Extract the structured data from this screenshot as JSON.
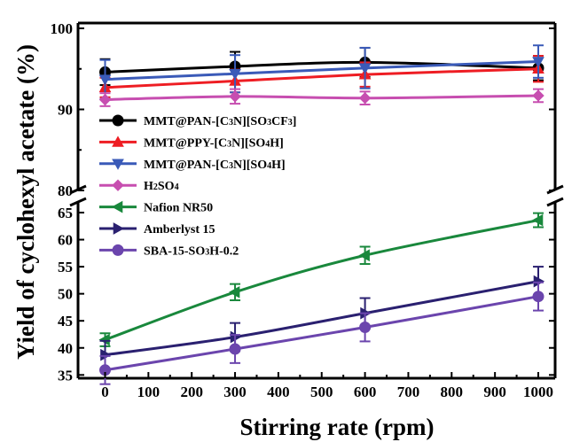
{
  "chart_data": {
    "type": "line",
    "xlabel": "Stirring rate (rpm)",
    "ylabel": "Yield of cyclohexyl acetate (%)",
    "xlim": [
      -30,
      1050
    ],
    "x_ticks": [
      "0",
      "100",
      "200",
      "300",
      "400",
      "500",
      "600",
      "700",
      "800",
      "900",
      "1000"
    ],
    "axis_break": "between 65 and 80",
    "upper_ylim": [
      80,
      100
    ],
    "upper_y_ticks": [
      "80",
      "90",
      "100"
    ],
    "lower_ylim": [
      33,
      66
    ],
    "lower_y_ticks": [
      "35",
      "40",
      "45",
      "50",
      "55",
      "60",
      "65"
    ],
    "x": [
      0,
      300,
      600,
      1000
    ],
    "legend_position": "left",
    "series": [
      {
        "name": "MMT@PAN-[C3N][SO3CF3]",
        "color": "#000000",
        "marker": "circle",
        "values": [
          94.6,
          95.3,
          95.8,
          95.1
        ],
        "errors": [
          1.6,
          1.8,
          1.8,
          1.5
        ]
      },
      {
        "name": "MMT@PPY-[C3N][SO4H]",
        "color": "#ee1d23",
        "marker": "triangle-up",
        "values": [
          92.7,
          93.5,
          94.3,
          95.0
        ],
        "errors": [
          1.2,
          1.4,
          1.5,
          1.6
        ]
      },
      {
        "name": "MMT@PAN-[C3N][SO4H]",
        "color": "#3a5ab8",
        "marker": "triangle-down",
        "values": [
          93.7,
          94.4,
          95.1,
          95.9
        ],
        "errors": [
          2.4,
          2.3,
          2.5,
          2.0
        ]
      },
      {
        "name": "H2SO4",
        "color": "#c74eb0",
        "marker": "diamond",
        "values": [
          91.2,
          91.6,
          91.4,
          91.7
        ],
        "errors": [
          0.8,
          0.9,
          0.8,
          0.8
        ]
      },
      {
        "name": "Nafion NR50",
        "color": "#19883c",
        "marker": "triangle-left",
        "values": [
          41.5,
          50.3,
          57.1,
          63.6
        ],
        "errors": [
          1.2,
          1.5,
          1.6,
          1.3
        ]
      },
      {
        "name": "Amberlyst 15",
        "color": "#2a2070",
        "marker": "triangle-right",
        "values": [
          38.7,
          42.0,
          46.4,
          52.3
        ],
        "errors": [
          2.6,
          2.6,
          2.8,
          2.7
        ]
      },
      {
        "name": "SBA-15-SO3H-0.2",
        "color": "#6b45ad",
        "marker": "circle",
        "values": [
          35.9,
          39.8,
          43.8,
          49.5
        ],
        "errors": [
          2.6,
          2.6,
          2.6,
          2.6
        ]
      }
    ]
  },
  "legend": [
    {
      "parts": [
        [
          "MMT@PAN-[C",
          0
        ],
        [
          "3",
          1
        ],
        [
          "N][SO",
          0
        ],
        [
          "3",
          1
        ],
        [
          "CF",
          0
        ],
        [
          "3",
          1
        ],
        [
          "]",
          0
        ]
      ]
    },
    {
      "parts": [
        [
          "MMT@PPY-[C",
          0
        ],
        [
          "3",
          1
        ],
        [
          "N][SO",
          0
        ],
        [
          "4",
          1
        ],
        [
          "H]",
          0
        ]
      ]
    },
    {
      "parts": [
        [
          "MMT@PAN-[C",
          0
        ],
        [
          "3",
          1
        ],
        [
          "N][SO",
          0
        ],
        [
          "4",
          1
        ],
        [
          "H]",
          0
        ]
      ]
    },
    {
      "parts": [
        [
          "H",
          0
        ],
        [
          "2",
          1
        ],
        [
          "SO",
          0
        ],
        [
          "4",
          1
        ]
      ]
    },
    {
      "parts": [
        [
          "Nafion NR50",
          0
        ]
      ]
    },
    {
      "parts": [
        [
          "Amberlyst 15",
          0
        ]
      ]
    },
    {
      "parts": [
        [
          "SBA-15-SO",
          0
        ],
        [
          "3",
          1
        ],
        [
          "H-0.2",
          0
        ]
      ]
    }
  ]
}
